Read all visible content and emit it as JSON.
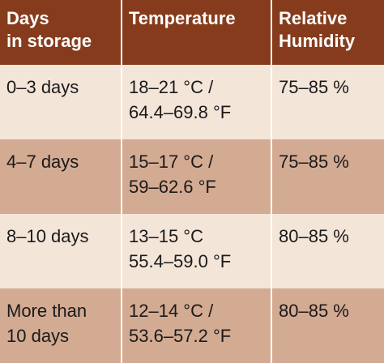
{
  "table": {
    "headers": [
      "Days\nin storage",
      "Temperature",
      "Relative\nHumidity"
    ],
    "rows": [
      {
        "days": "0–3 days",
        "temperature": "18–21 °C /\n64.4–69.8 °F",
        "humidity": "75–85 %"
      },
      {
        "days": "4–7 days",
        "temperature": "15–17 °C /\n59–62.6 °F",
        "humidity": "75–85 %"
      },
      {
        "days": "8–10 days",
        "temperature": "13–15 °C\n55.4–59.0 °F",
        "humidity": "80–85 %"
      },
      {
        "days": "More than\n10 days",
        "temperature": "12–14 °C /\n53.6–57.2 °F",
        "humidity": "80–85 %"
      }
    ]
  },
  "colors": {
    "header_background": "#863c1c",
    "header_text": "#ffffff",
    "row_light": "#f4e5d9",
    "row_dark": "#d3aa92",
    "body_text": "#1a1a1a"
  }
}
